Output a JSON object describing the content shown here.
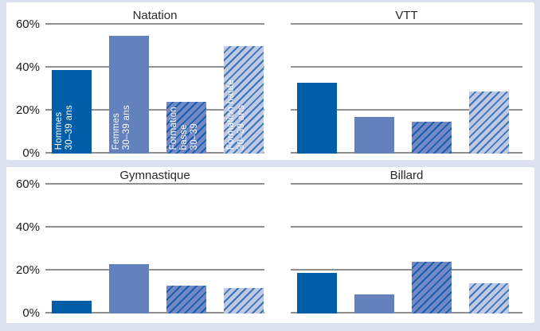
{
  "page": {
    "background": "#dce1f0",
    "panel_background": "#ffffff",
    "gridline_color": "#909090",
    "title_color": "#2a2a2a",
    "axis_label_color": "#1a1a1a",
    "bar_label_color": "#ffffff"
  },
  "series_styles": [
    {
      "name": "Hommes 30–39 ans",
      "label_lines": [
        "Hommes",
        "30–39 ans"
      ],
      "fill": "#005ea8",
      "hatch": null
    },
    {
      "name": "Femmes 30–39 ans",
      "label_lines": [
        "Femmes",
        "30–39 ans"
      ],
      "fill": "#6281bd",
      "hatch": null
    },
    {
      "name": "Formation basse 30–39",
      "label_lines": [
        "Formation",
        "basse",
        "30–39"
      ],
      "fill": "#7189c4",
      "hatch": "#1a5dac"
    },
    {
      "name": "Formation haute 30–39 ans",
      "label_lines": [
        "Formation haute",
        "30–39 ans"
      ],
      "fill": "#bec9e6",
      "hatch": "#3b73b6"
    }
  ],
  "chart_data": [
    {
      "type": "bar",
      "title": "Natation",
      "categories": [
        "Hommes 30–39 ans",
        "Femmes 30–39 ans",
        "Formation basse 30–39",
        "Formation haute 30–39 ans"
      ],
      "values": [
        39,
        55,
        24,
        50
      ],
      "unit": "%",
      "ylim": [
        0,
        60
      ],
      "yticks": [
        "0%",
        "20%",
        "40%",
        "60%"
      ],
      "ytick_values": [
        0,
        20,
        40,
        60
      ],
      "show_y_labels": true,
      "show_bar_labels": true,
      "grid": true,
      "legend": "labels inside bars"
    },
    {
      "type": "bar",
      "title": "VTT",
      "categories": [
        "Hommes 30–39 ans",
        "Femmes 30–39 ans",
        "Formation basse 30–39",
        "Formation haute 30–39 ans"
      ],
      "values": [
        33,
        17,
        15,
        29
      ],
      "unit": "%",
      "ylim": [
        0,
        60
      ],
      "yticks": [
        "0%",
        "20%",
        "40%",
        "60%"
      ],
      "ytick_values": [
        0,
        20,
        40,
        60
      ],
      "show_y_labels": false,
      "show_bar_labels": false,
      "grid": true,
      "legend": "none"
    },
    {
      "type": "bar",
      "title": "Gymnastique",
      "categories": [
        "Hommes 30–39 ans",
        "Femmes 30–39 ans",
        "Formation basse 30–39",
        "Formation haute 30–39 ans"
      ],
      "values": [
        6,
        23,
        13,
        12
      ],
      "unit": "%",
      "ylim": [
        0,
        60
      ],
      "yticks": [
        "0%",
        "20%",
        "40%",
        "60%"
      ],
      "ytick_values": [
        0,
        20,
        40,
        60
      ],
      "show_y_labels": true,
      "show_bar_labels": false,
      "grid": true,
      "legend": "none"
    },
    {
      "type": "bar",
      "title": "Billard",
      "categories": [
        "Hommes 30–39 ans",
        "Femmes 30–39 ans",
        "Formation basse 30–39",
        "Formation haute 30–39 ans"
      ],
      "values": [
        19,
        9,
        24,
        14
      ],
      "unit": "%",
      "ylim": [
        0,
        60
      ],
      "yticks": [
        "0%",
        "20%",
        "40%",
        "60%"
      ],
      "ytick_values": [
        0,
        20,
        40,
        60
      ],
      "show_y_labels": false,
      "show_bar_labels": false,
      "grid": true,
      "legend": "none"
    }
  ]
}
